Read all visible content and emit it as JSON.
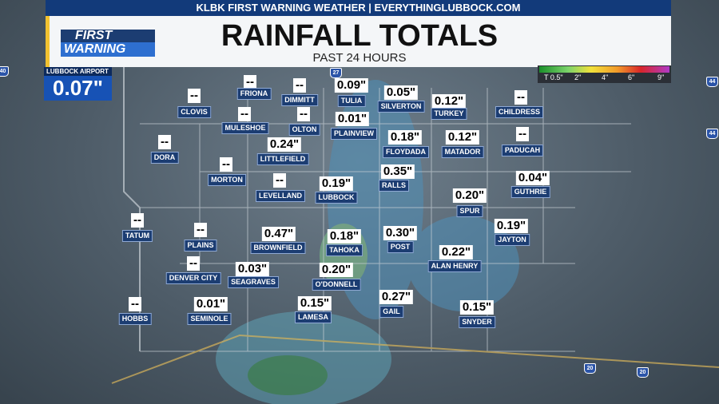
{
  "header": {
    "banner": "KLBK FIRST WARNING WEATHER | EVERYTHINGLUBBOCK.COM",
    "title": "RAINFALL TOTALS",
    "subtitle": "PAST 24 HOURS",
    "logo": {
      "top": "FIRST",
      "bottom": "WARNING"
    }
  },
  "airport": {
    "label": "LUBBOCK AIRPORT",
    "value": "0.07\""
  },
  "legend": {
    "labels": [
      "T 0.5\"",
      "2\"",
      "4\"",
      "6\"",
      "9\""
    ]
  },
  "highways": [
    "40",
    "27",
    "44",
    "44",
    "20",
    "20"
  ],
  "stations": [
    {
      "name": "FRIONA",
      "value": "--"
    },
    {
      "name": "DIMMITT",
      "value": "--"
    },
    {
      "name": "TULIA",
      "value": "0.09\""
    },
    {
      "name": "SILVERTON",
      "value": "0.05\""
    },
    {
      "name": "TURKEY",
      "value": "0.12\""
    },
    {
      "name": "CHILDRESS",
      "value": "--"
    },
    {
      "name": "CLOVIS",
      "value": "--"
    },
    {
      "name": "MULESHOE",
      "value": "--"
    },
    {
      "name": "OLTON",
      "value": "--"
    },
    {
      "name": "PLAINVIEW",
      "value": "0.01\""
    },
    {
      "name": "FLOYDADA",
      "value": "0.18\""
    },
    {
      "name": "MATADOR",
      "value": "0.12\""
    },
    {
      "name": "PADUCAH",
      "value": "--"
    },
    {
      "name": "LITTLEFIELD",
      "value": "0.24\""
    },
    {
      "name": "DORA",
      "value": "--"
    },
    {
      "name": "MORTON",
      "value": "--"
    },
    {
      "name": "LEVELLAND",
      "value": "--"
    },
    {
      "name": "LUBBOCK",
      "value": "0.19\""
    },
    {
      "name": "RALLS",
      "value": "0.35\""
    },
    {
      "name": "GUTHRIE",
      "value": "0.04\""
    },
    {
      "name": "SPUR",
      "value": "0.20\""
    },
    {
      "name": "TATUM",
      "value": "--"
    },
    {
      "name": "PLAINS",
      "value": "--"
    },
    {
      "name": "BROWNFIELD",
      "value": "0.47\""
    },
    {
      "name": "TAHOKA",
      "value": "0.18\""
    },
    {
      "name": "POST",
      "value": "0.30\""
    },
    {
      "name": "JAYTON",
      "value": "0.19\""
    },
    {
      "name": "ALAN HENRY",
      "value": "0.22\""
    },
    {
      "name": "DENVER CITY",
      "value": "--"
    },
    {
      "name": "SEAGRAVES",
      "value": "0.03\""
    },
    {
      "name": "O'DONNELL",
      "value": "0.20\""
    },
    {
      "name": "GAIL",
      "value": "0.27\""
    },
    {
      "name": "HOBBS",
      "value": "--"
    },
    {
      "name": "SEMINOLE",
      "value": "0.01\""
    },
    {
      "name": "LAMESA",
      "value": "0.15\""
    },
    {
      "name": "SNYDER",
      "value": "0.15\""
    }
  ]
}
